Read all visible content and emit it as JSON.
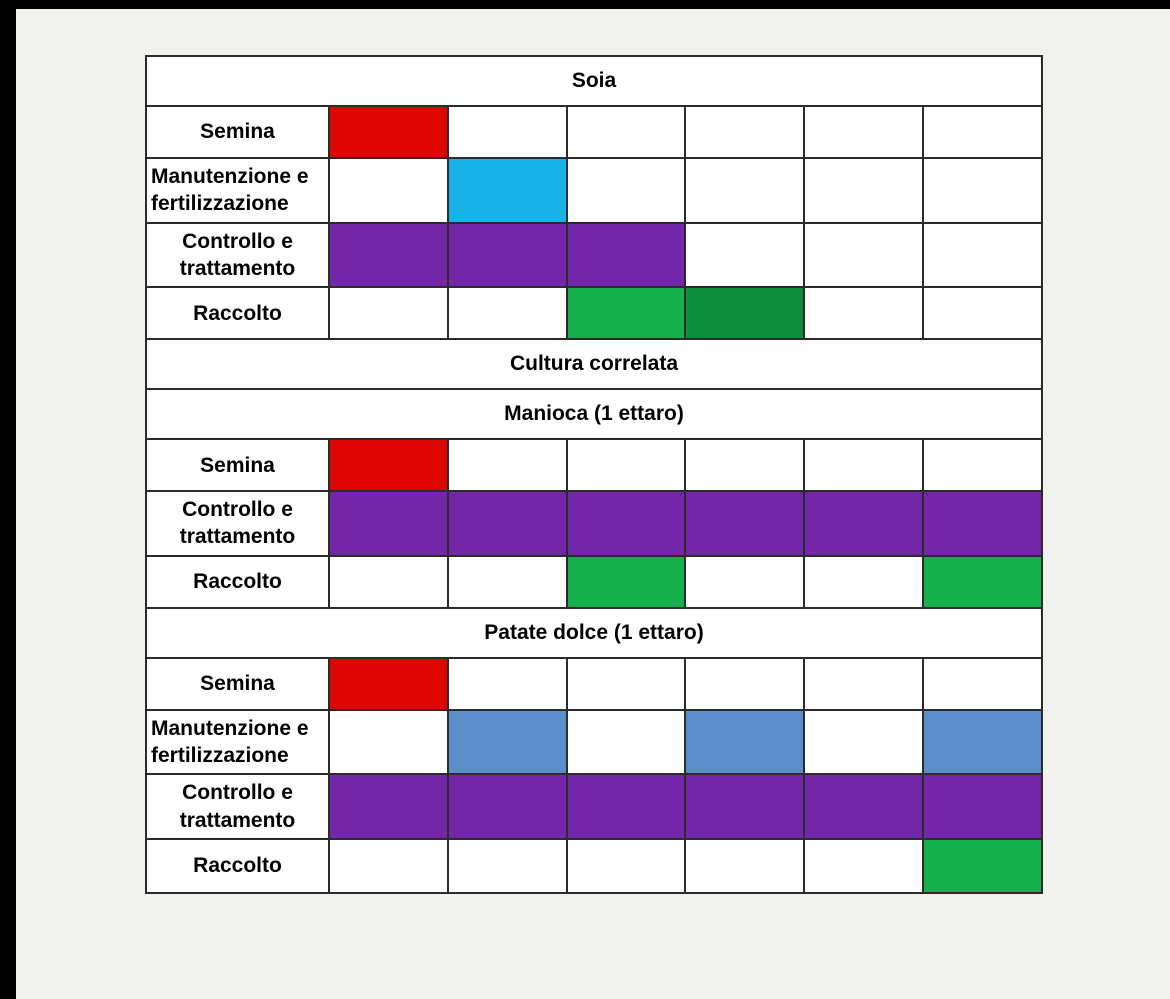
{
  "page": {
    "background_color": "#f1f1ee",
    "frame_color": "#000000"
  },
  "colors": {
    "red": "#e00600",
    "cyan": "#16b2e8",
    "purple": "#7127a8",
    "green": "#16b04c",
    "green_dark": "#0e8f3d",
    "blue": "#5c8dcb",
    "border": "#2b2b2b"
  },
  "chart_data": {
    "type": "table",
    "subtype": "gantt-crop-calendar",
    "columns": 6,
    "legend_position": "none",
    "grid": true,
    "sections": [
      {
        "title": "Soia",
        "rows": [
          {
            "label": "Semina",
            "bars": [
              {
                "start": 1,
                "span": 1,
                "color": "red"
              }
            ]
          },
          {
            "label": "Manutenzione e fertilizzazione",
            "bars": [
              {
                "start": 2,
                "span": 1,
                "color": "cyan"
              }
            ]
          },
          {
            "label": "Controllo e trattamento",
            "bars": [
              {
                "start": 1,
                "span": 3,
                "color": "purple"
              }
            ]
          },
          {
            "label": "Raccolto",
            "bars": [
              {
                "start": 3,
                "span": 1,
                "color": "green"
              },
              {
                "start": 4,
                "span": 1,
                "color": "green_dark"
              }
            ]
          }
        ]
      },
      {
        "title": "Cultura correlata",
        "rows": []
      },
      {
        "title": "Manioca (1 ettaro)",
        "rows": [
          {
            "label": "Semina",
            "bars": [
              {
                "start": 1,
                "span": 1,
                "color": "red"
              }
            ]
          },
          {
            "label": "Controllo e trattamento",
            "bars": [
              {
                "start": 1,
                "span": 6,
                "color": "purple"
              }
            ]
          },
          {
            "label": "Raccolto",
            "bars": [
              {
                "start": 3,
                "span": 1,
                "color": "green"
              },
              {
                "start": 6,
                "span": 1,
                "color": "green"
              }
            ]
          }
        ]
      },
      {
        "title": "Patate dolce (1 ettaro)",
        "rows": [
          {
            "label": "Semina",
            "bars": [
              {
                "start": 1,
                "span": 1,
                "color": "red"
              }
            ]
          },
          {
            "label": "Manutenzione e fertilizzazione",
            "bars": [
              {
                "start": 2,
                "span": 1,
                "color": "blue"
              },
              {
                "start": 4,
                "span": 1,
                "color": "blue"
              },
              {
                "start": 6,
                "span": 1,
                "color": "blue"
              }
            ]
          },
          {
            "label": "Controllo e trattamento",
            "bars": [
              {
                "start": 1,
                "span": 6,
                "color": "purple"
              }
            ]
          },
          {
            "label": "Raccolto",
            "bars": [
              {
                "start": 6,
                "span": 1,
                "color": "green"
              }
            ]
          }
        ]
      }
    ]
  }
}
